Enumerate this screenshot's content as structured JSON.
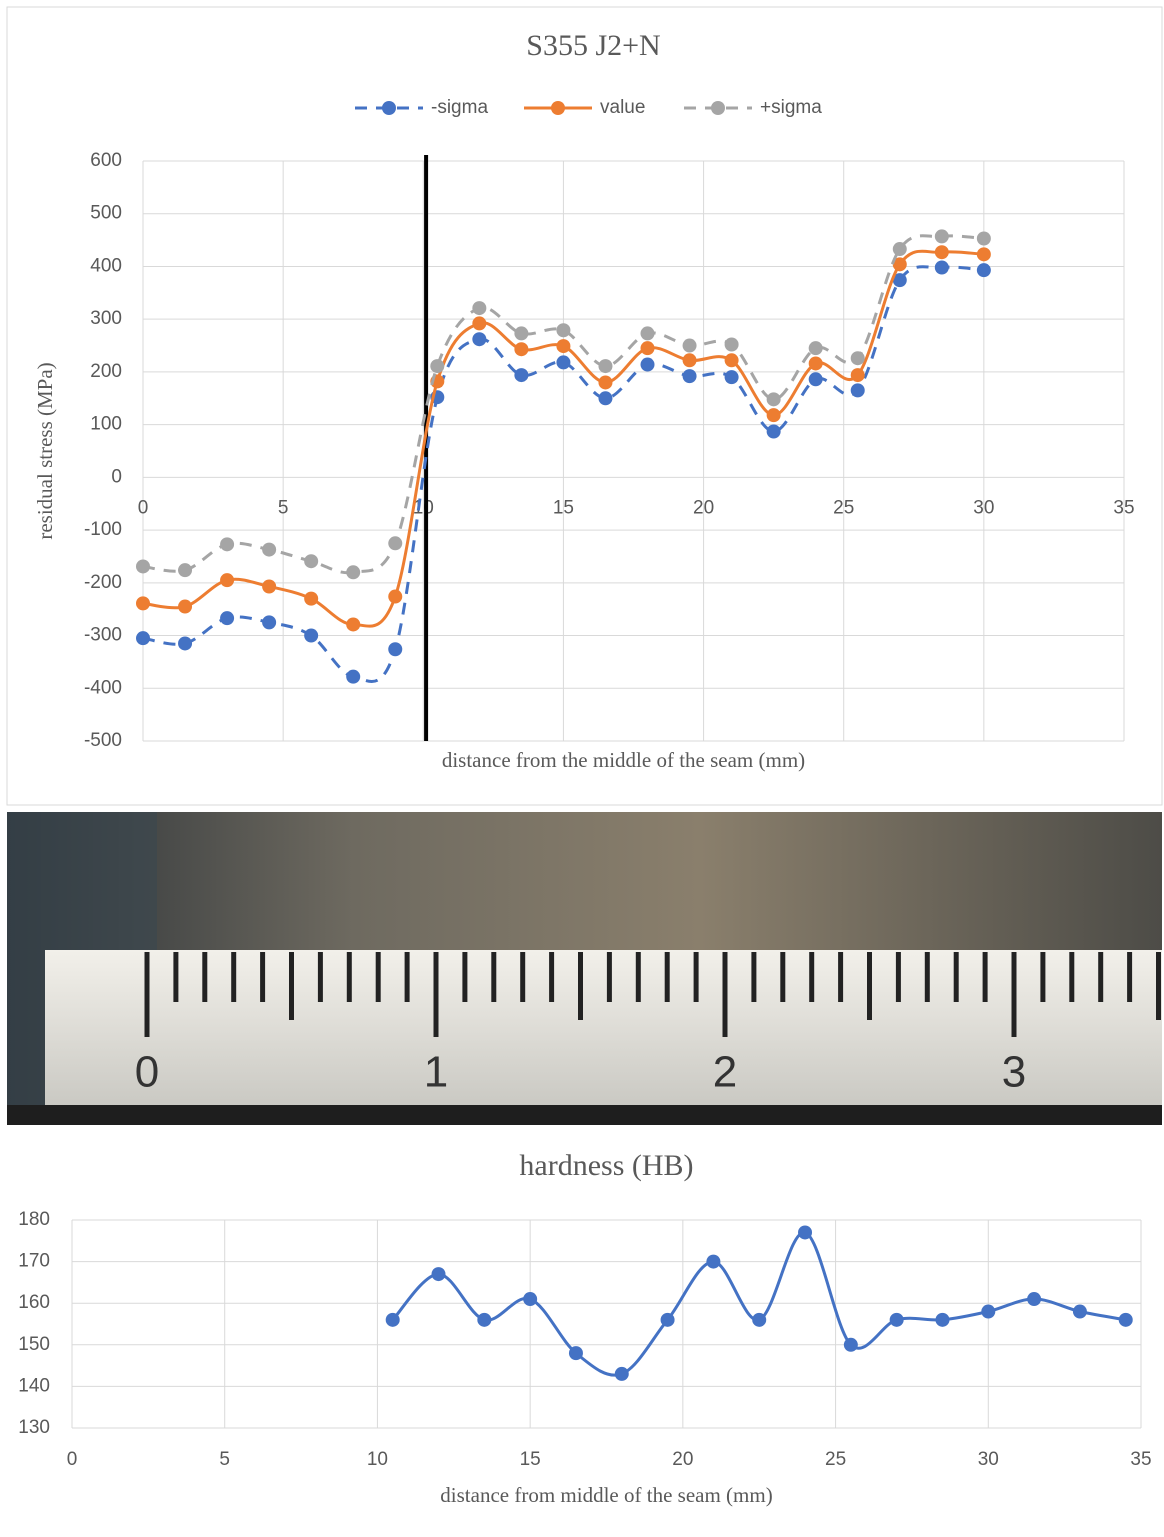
{
  "chart_data": [
    {
      "type": "line",
      "title": "S355 J2+N",
      "x_label": "distance from the middle of the seam (mm)",
      "y_label": "residual stress (MPa)",
      "x": [
        0,
        1.5,
        3,
        4.5,
        6,
        7.5,
        9,
        10.5,
        12,
        13.5,
        15,
        16.5,
        18,
        19.5,
        21,
        22.5,
        24,
        25.5,
        27,
        28.5,
        30
      ],
      "series": [
        {
          "name": "-sigma",
          "color": "#4472c4",
          "dash": true,
          "values": [
            -305,
            -315,
            -267,
            -275,
            -300,
            -378,
            -326,
            152,
            262,
            194,
            218,
            150,
            214,
            192,
            190,
            87,
            186,
            165,
            374,
            398,
            393
          ]
        },
        {
          "name": "value",
          "color": "#ed7d31",
          "dash": false,
          "values": [
            -239,
            -245,
            -195,
            -207,
            -230,
            -279,
            -226,
            182,
            292,
            243,
            249,
            180,
            245,
            222,
            222,
            118,
            216,
            194,
            404,
            427,
            423
          ]
        },
        {
          "name": "+sigma",
          "color": "#a5a5a5",
          "dash": true,
          "values": [
            -169,
            -176,
            -127,
            -137,
            -159,
            -180,
            -125,
            211,
            321,
            273,
            279,
            211,
            273,
            250,
            252,
            148,
            245,
            226,
            433,
            457,
            453
          ]
        }
      ],
      "xlim": [
        0,
        35
      ],
      "xticks": [
        0,
        5,
        10,
        15,
        20,
        25,
        30,
        35
      ],
      "ylim": [
        -500,
        600
      ],
      "yticks": [
        -500,
        -400,
        -300,
        -200,
        -100,
        0,
        100,
        200,
        300,
        400,
        500,
        600
      ],
      "vline": 10.1,
      "vline_color": "#000000",
      "grid": true,
      "legend": "top",
      "smooth": true
    },
    {
      "type": "line",
      "title": "hardness (HB)",
      "x_label": "distance from middle of the seam (mm)",
      "x": [
        10.5,
        12,
        13.5,
        15,
        16.5,
        18,
        19.5,
        21,
        22.5,
        24,
        25.5,
        27,
        28.5,
        30,
        31.5,
        33,
        34.5
      ],
      "series": [
        {
          "name": "hardness",
          "color": "#4472c4",
          "dash": false,
          "values": [
            156,
            167,
            156,
            161,
            148,
            143,
            156,
            170,
            156,
            177,
            150,
            156,
            156,
            158,
            161,
            158,
            156
          ]
        }
      ],
      "xlim": [
        0,
        35
      ],
      "xticks": [
        0,
        5,
        10,
        15,
        20,
        25,
        30,
        35
      ],
      "ylim": [
        130,
        180
      ],
      "yticks": [
        130,
        140,
        150,
        160,
        170,
        180
      ],
      "grid": true,
      "smooth": true
    }
  ],
  "ruler": {
    "labels": [
      "0",
      "1",
      "2",
      "3"
    ]
  }
}
